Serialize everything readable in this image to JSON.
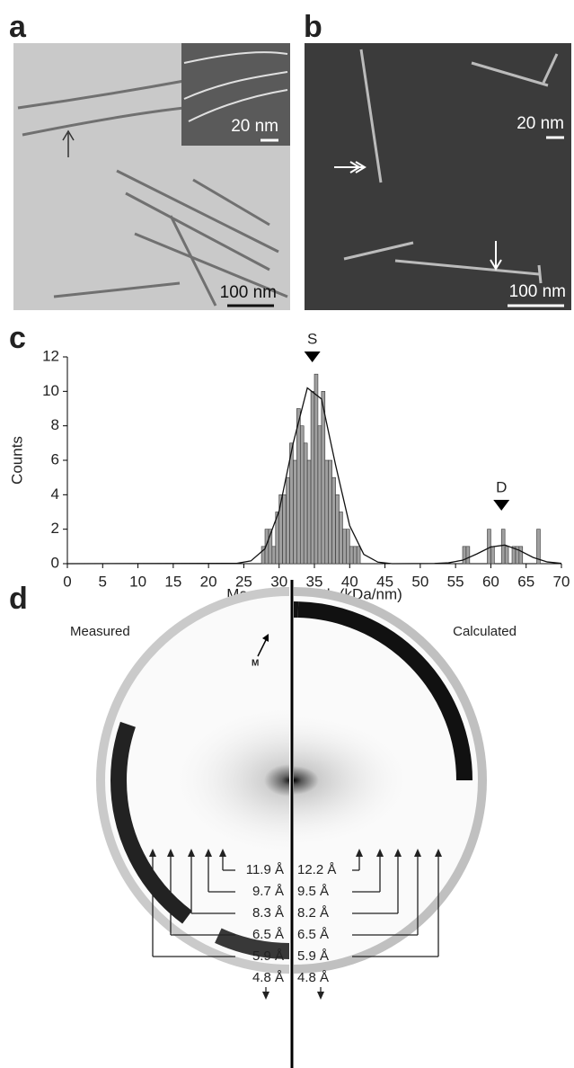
{
  "panels": {
    "a": {
      "label": "a",
      "inset_scale": "20 nm",
      "scale": "100 nm"
    },
    "b": {
      "label": "b",
      "inset_scale": "20 nm",
      "scale": "100 nm"
    },
    "c": {
      "label": "c"
    },
    "d": {
      "label": "d",
      "left_title": "Measured",
      "right_title": "Calculated",
      "marker": "M",
      "measured": [
        "11.9 Å",
        "9.7 Å",
        "8.3 Å",
        "6.5 Å",
        "5.9 Å",
        "4.8 Å"
      ],
      "calculated": [
        "12.2 Å",
        "9.5 Å",
        "8.2 Å",
        "6.5 Å",
        "5.9 Å",
        "4.8 Å"
      ]
    }
  },
  "chart_data": {
    "type": "histogram",
    "xlabel": "Mass per length (kDa/nm)",
    "ylabel": "Counts",
    "color": "#a0a0a0",
    "bins": [
      27.5,
      28,
      28.5,
      29,
      29.5,
      30,
      30.5,
      31,
      31.5,
      32,
      32.5,
      33,
      33.5,
      34,
      34.5,
      35,
      35.5,
      36,
      36.5,
      37,
      37.5,
      38,
      38.5,
      39,
      39.5,
      40,
      40.5,
      41,
      41.5,
      42,
      42.5,
      43,
      43.5,
      44,
      44.5,
      45,
      45.5,
      46,
      46.5,
      47,
      47.5,
      48,
      48.5,
      49,
      49.5,
      50,
      50.5,
      51,
      51.5,
      52,
      52.5,
      53,
      53.5,
      54,
      54.5,
      55,
      55.5,
      56,
      56.5,
      57,
      57.5,
      58,
      58.5,
      59,
      59.5,
      60,
      60.5,
      61,
      61.5,
      62,
      62.5,
      63,
      63.5,
      64,
      64.5,
      65,
      65.5,
      66,
      66.5,
      67,
      67.5
    ],
    "counts": [
      1,
      2,
      2,
      1,
      3,
      4,
      4,
      5,
      7,
      6,
      9,
      8,
      7,
      6,
      10,
      11,
      8,
      10,
      6,
      6,
      5,
      4,
      3,
      2,
      2,
      1,
      1,
      1,
      0,
      0,
      0,
      0,
      0,
      0,
      0,
      0,
      0,
      0,
      0,
      0,
      0,
      0,
      0,
      0,
      0,
      0,
      0,
      0,
      0,
      0,
      0,
      0,
      0,
      0,
      0,
      0,
      0,
      1,
      1,
      0,
      0,
      0,
      0,
      0,
      2,
      1,
      0,
      0,
      2,
      1,
      0,
      1,
      1,
      1,
      0,
      0,
      0,
      0,
      2,
      0
    ],
    "fit": {
      "x": [
        0,
        24,
        26,
        28,
        30,
        32,
        34,
        36,
        38,
        40,
        42,
        44,
        46,
        52,
        54,
        56,
        58,
        60,
        62,
        64,
        66,
        68,
        70
      ],
      "values": [
        0,
        0.02,
        0.16,
        0.87,
        3.06,
        7.0,
        10.2,
        9.56,
        5.73,
        2.2,
        0.54,
        0.09,
        0,
        0.01,
        0.05,
        0.2,
        0.56,
        0.97,
        1.08,
        0.78,
        0.36,
        0.1,
        0.02
      ]
    },
    "annotations": [
      {
        "text": "S",
        "x": 34.7
      },
      {
        "text": "D",
        "x": 61.5
      }
    ],
    "xlim": [
      0,
      70
    ],
    "xticks": [
      0,
      5,
      10,
      15,
      20,
      25,
      30,
      35,
      40,
      45,
      50,
      55,
      60,
      65,
      70
    ],
    "ylim": [
      0,
      12
    ],
    "yticks": [
      0,
      2,
      4,
      6,
      8,
      10,
      12
    ]
  }
}
